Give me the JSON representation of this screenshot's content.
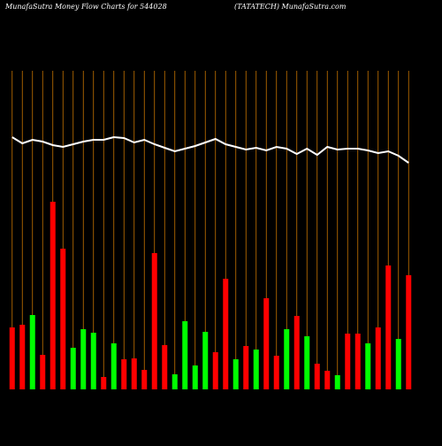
{
  "chart_data": {
    "type": "bar",
    "title": "MunafaSutra  Money Flow  Charts for 544028",
    "subtitle": "(TATATECH) MunafaSutra.com",
    "ylim": [
      0,
      360
    ],
    "grid": true,
    "grid_color": "#c87400",
    "series": [
      {
        "type": "bar",
        "values": [
          70,
          73,
          84,
          39,
          212,
          159,
          47,
          68,
          64,
          14,
          52,
          34,
          35,
          22,
          154,
          50,
          17,
          77,
          27,
          65,
          42,
          125,
          34,
          49,
          45,
          103,
          38,
          68,
          83,
          60,
          29,
          21,
          16,
          63,
          63,
          52,
          70,
          140,
          57,
          129
        ],
        "colors": [
          "#ff0000",
          "#ff0000",
          "#00ff00",
          "#ff0000",
          "#ff0000",
          "#ff0000",
          "#00ff00",
          "#00ff00",
          "#00ff00",
          "#ff0000",
          "#00ff00",
          "#ff0000",
          "#ff0000",
          "#ff0000",
          "#ff0000",
          "#ff0000",
          "#00ff00",
          "#00ff00",
          "#00ff00",
          "#00ff00",
          "#ff0000",
          "#ff0000",
          "#00ff00",
          "#ff0000",
          "#00ff00",
          "#ff0000",
          "#ff0000",
          "#00ff00",
          "#ff0000",
          "#00ff00",
          "#ff0000",
          "#ff0000",
          "#00ff00",
          "#ff0000",
          "#ff0000",
          "#00ff00",
          "#ff0000",
          "#ff0000",
          "#00ff00",
          "#ff0000"
        ]
      },
      {
        "type": "line",
        "color": "#ffffff",
        "values": [
          285,
          278,
          282,
          280,
          276,
          274,
          277,
          280,
          282,
          282,
          285,
          284,
          279,
          282,
          277,
          273,
          269,
          272,
          275,
          279,
          283,
          277,
          274,
          271,
          273,
          270,
          274,
          272,
          266,
          272,
          265,
          274,
          271,
          272,
          272,
          270,
          267,
          269,
          264,
          256
        ]
      }
    ]
  }
}
